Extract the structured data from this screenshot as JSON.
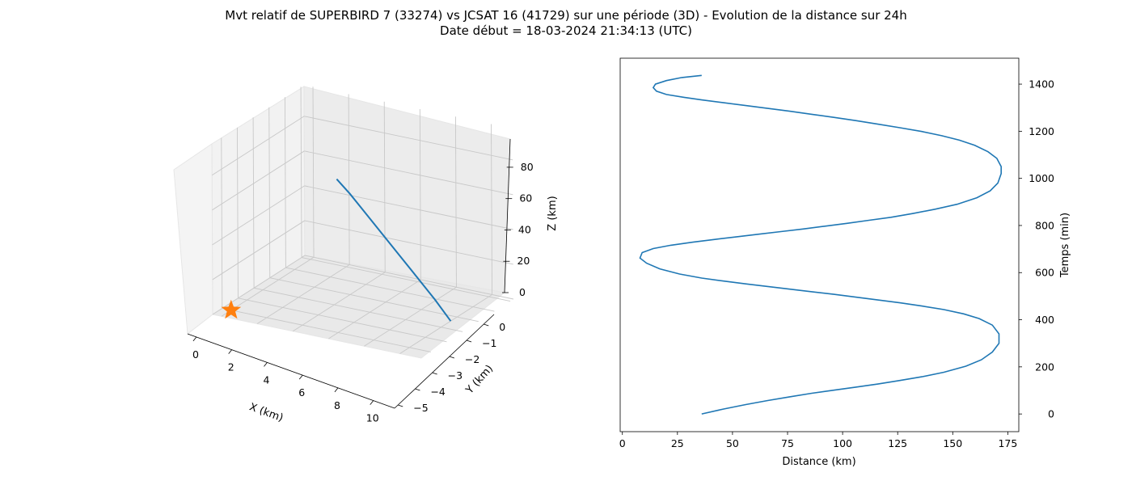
{
  "figure": {
    "title_line1": "Mvt relatif de SUPERBIRD 7 (33274) vs JCSAT 16 (41729) sur une période (3D) - Evolution de la distance sur 24h",
    "title_line2": "Date début = 18-03-2024 21:34:13 (UTC)"
  },
  "colors": {
    "series": "#1f77b4",
    "marker": "#ff7f0e",
    "pane": "#f2f2f2",
    "grid": "#c8c8c8"
  },
  "chart_data": [
    {
      "type": "line",
      "projection": "3d",
      "xlabel": "X (km)",
      "ylabel": "Y (km)",
      "zlabel": "Z (km)",
      "xlim": [
        -0.5,
        11.2
      ],
      "ylim": [
        -5.2,
        0.6
      ],
      "zlim": [
        0,
        98
      ],
      "xticks": [
        0,
        2,
        4,
        6,
        8,
        10
      ],
      "yticks": [
        0,
        -1,
        -2,
        -3,
        -4,
        -5
      ],
      "zticks": [
        0,
        20,
        40,
        60,
        80
      ],
      "grid": true,
      "marker": {
        "symbol": "star",
        "x": 0,
        "y": 0,
        "z": 0
      },
      "series": [
        {
          "x": [
            10.0,
            9.3,
            8.5,
            7.7,
            6.9,
            6.1,
            5.4,
            4.8
          ],
          "y": [
            -2.6,
            -2.4,
            -2.2,
            -2.0,
            -1.8,
            -1.6,
            -1.45,
            -1.3
          ],
          "z": [
            0,
            12,
            24,
            36,
            48,
            60,
            70,
            78
          ]
        }
      ]
    },
    {
      "type": "line",
      "xlabel": "Distance (km)",
      "ylabel": "Temps (min)",
      "xlim": [
        -1,
        180
      ],
      "ylim": [
        -75,
        1510
      ],
      "xticks": [
        0,
        25,
        50,
        75,
        100,
        125,
        150,
        175
      ],
      "yticks": [
        0,
        200,
        400,
        600,
        800,
        1000,
        1200,
        1400
      ],
      "yaxis_position": "right",
      "grid": false,
      "series": [
        {
          "x": [
            36,
            46,
            56,
            66,
            76,
            86,
            96,
            106,
            116,
            126,
            136,
            146,
            156,
            163,
            168,
            171,
            171,
            168,
            162,
            155,
            146,
            136,
            126,
            116,
            106,
            96,
            86,
            76,
            66,
            56,
            46,
            36,
            26,
            17,
            11,
            8,
            9,
            14,
            22,
            32,
            42,
            52,
            62,
            72,
            82,
            92,
            102,
            112,
            122,
            132,
            142,
            152,
            161,
            167,
            170.5,
            172,
            172,
            170,
            166,
            160,
            153,
            145,
            136,
            126,
            116,
            106,
            96,
            86,
            76,
            66,
            56,
            46,
            36,
            28,
            20,
            15.5,
            14,
            15,
            20,
            27,
            36
          ],
          "y": [
            0,
            21,
            40,
            57,
            73,
            88,
            101,
            114,
            127,
            142,
            158,
            177,
            203,
            230,
            263,
            300,
            340,
            377,
            405,
            425,
            443,
            458,
            472,
            484,
            496,
            508,
            519,
            530,
            541,
            552,
            564,
            577,
            594,
            616,
            640,
            662,
            685,
            702,
            716,
            729,
            741,
            752,
            763,
            774,
            785,
            797,
            809,
            822,
            835,
            851,
            869,
            890,
            918,
            947,
            980,
            1020,
            1050,
            1085,
            1113,
            1140,
            1162,
            1181,
            1199,
            1215,
            1230,
            1245,
            1259,
            1272,
            1285,
            1297,
            1309,
            1321,
            1333,
            1344,
            1356,
            1370,
            1385,
            1400,
            1415,
            1428,
            1437
          ]
        }
      ]
    }
  ]
}
